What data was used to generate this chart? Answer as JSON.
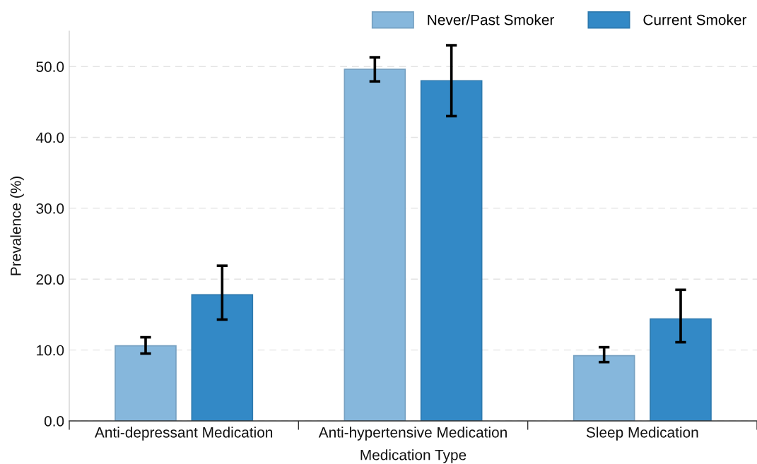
{
  "chart_data": {
    "type": "bar",
    "xlabel": "Medication Type",
    "ylabel": "Prevalence (%)",
    "categories": [
      "Anti-depressant Medication",
      "Anti-hypertensive Medication",
      "Sleep Medication"
    ],
    "series": [
      {
        "name": "Never/Past Smoker",
        "color": "#86b7dc",
        "values": [
          10.6,
          49.6,
          9.2
        ],
        "errors": [
          [
            9.5,
            11.8
          ],
          [
            47.9,
            51.3
          ],
          [
            8.3,
            10.4
          ]
        ]
      },
      {
        "name": "Current Smoker",
        "color": "#3389c6",
        "values": [
          17.8,
          48.0,
          14.4
        ],
        "errors": [
          [
            14.3,
            21.9
          ],
          [
            43.0,
            53.0
          ],
          [
            11.1,
            18.5
          ]
        ]
      }
    ],
    "ylim": [
      0,
      55
    ],
    "yticks": [
      {
        "value": 0,
        "label": "0.0"
      },
      {
        "value": 10,
        "label": "10.0"
      },
      {
        "value": 20,
        "label": "20.0"
      },
      {
        "value": 30,
        "label": "30.0"
      },
      {
        "value": 40,
        "label": "40.0"
      },
      {
        "value": 50,
        "label": "50.0"
      }
    ],
    "grid": "y",
    "legend": "top right"
  }
}
